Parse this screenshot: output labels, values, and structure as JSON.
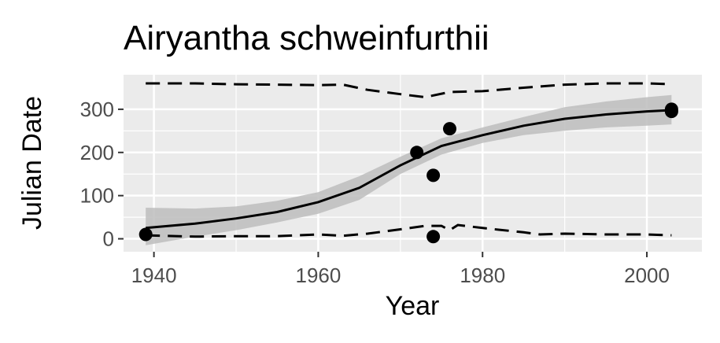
{
  "chart_data": {
    "type": "scatter",
    "title": "Airyantha schweinfurthii",
    "xlabel": "Year",
    "ylabel": "Julian Date",
    "xlim": [
      1936.3,
      2006.7
    ],
    "ylim": [
      -30,
      380
    ],
    "x_ticks": [
      1940,
      1960,
      1980,
      2000
    ],
    "y_ticks": [
      0,
      100,
      200,
      300
    ],
    "x_tick_labels": [
      "1940",
      "1960",
      "1980",
      "2000"
    ],
    "y_tick_labels": [
      "0",
      "100",
      "200",
      "300"
    ],
    "grid": true,
    "legend": "none",
    "colors": {
      "panel": "#ebebeb",
      "grid": "#ffffff",
      "points": "#000000",
      "band": "#bdbdbd",
      "tick_text": "#4d4d4d"
    },
    "points": [
      {
        "x": 1939,
        "y": 10
      },
      {
        "x": 1972,
        "y": 200
      },
      {
        "x": 1974,
        "y": 147
      },
      {
        "x": 1974,
        "y": 5
      },
      {
        "x": 1976,
        "y": 255
      },
      {
        "x": 2003,
        "y": 300
      },
      {
        "x": 2003,
        "y": 295
      }
    ],
    "trend": {
      "x": [
        1939,
        1945,
        1950,
        1955,
        1960,
        1965,
        1970,
        1975,
        1980,
        1985,
        1990,
        1995,
        2000,
        2003
      ],
      "y": [
        25,
        35,
        47,
        62,
        85,
        118,
        170,
        215,
        240,
        262,
        278,
        288,
        295,
        298
      ],
      "lower": [
        -15,
        5,
        20,
        38,
        58,
        90,
        150,
        195,
        222,
        240,
        250,
        258,
        262,
        265
      ],
      "upper": [
        72,
        70,
        75,
        88,
        108,
        145,
        190,
        233,
        258,
        282,
        305,
        318,
        328,
        333
      ]
    },
    "upper_bound": {
      "x": [
        1939,
        1945,
        1950,
        1955,
        1960,
        1963,
        1966,
        1970,
        1973,
        1976,
        1980,
        1985,
        1990,
        1995,
        2000,
        2003
      ],
      "y": [
        360,
        360,
        358,
        357,
        356,
        357,
        345,
        335,
        328,
        340,
        342,
        350,
        357,
        360,
        360,
        358
      ]
    },
    "lower_bound": {
      "x": [
        1939,
        1945,
        1950,
        1955,
        1960,
        1963,
        1966,
        1970,
        1973,
        1975,
        1976,
        1977,
        1980,
        1985,
        1987,
        1990,
        1995,
        2000,
        2003
      ],
      "y": [
        8,
        5,
        6,
        6,
        10,
        7,
        12,
        22,
        30,
        30,
        20,
        32,
        25,
        15,
        10,
        12,
        10,
        10,
        8
      ]
    }
  }
}
